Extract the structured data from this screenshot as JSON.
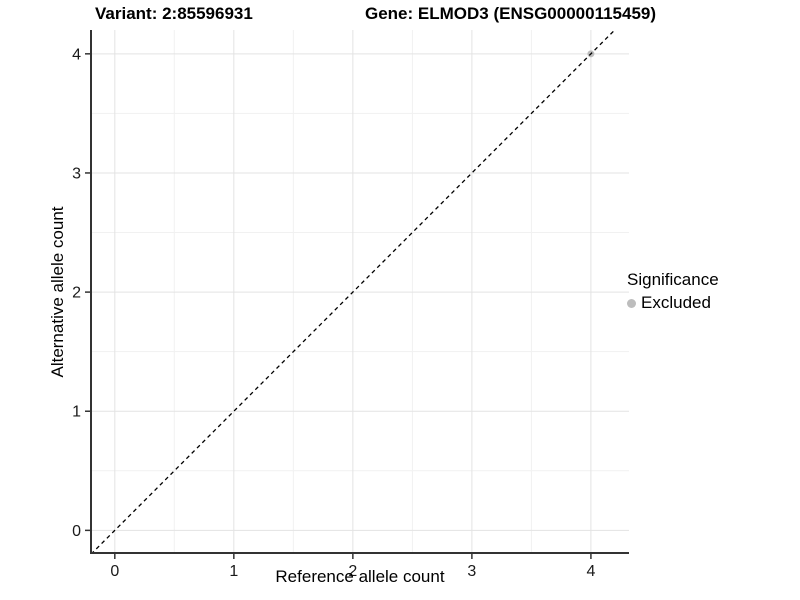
{
  "figure": {
    "title_left": "Variant: 2:85596931",
    "title_right": "Gene: ELMOD3 (ENSG00000115459)"
  },
  "chart_data": {
    "type": "scatter",
    "title": "Variant: 2:85596931   Gene: ELMOD3 (ENSG00000115459)",
    "xlabel": "Reference allele count",
    "ylabel": "Alternative allele count",
    "xlim": [
      -0.2,
      4.32
    ],
    "ylim": [
      -0.19,
      4.2
    ],
    "x_ticks": [
      0,
      1,
      2,
      3,
      4
    ],
    "y_ticks": [
      0,
      1,
      2,
      3,
      4
    ],
    "x_minor_ticks": [
      0.5,
      1.5,
      2.5,
      3.5
    ],
    "y_minor_ticks": [
      0.5,
      1.5,
      2.5,
      3.5
    ],
    "grid": {
      "major_color": "#e3e3e3",
      "minor_color": "#f1f1f1",
      "background": "#ffffff"
    },
    "axis": {
      "line_color": "#333333",
      "tick_color": "#333333",
      "tick_label_color": "#1a1a1a",
      "tick_label_size": 16
    },
    "reference_line": {
      "kind": "abline",
      "slope": 1,
      "intercept": 0,
      "style": "dashed",
      "color": "#000000"
    },
    "series": [
      {
        "name": "Excluded",
        "color": "#bdbdbd",
        "points": [
          {
            "x": 4,
            "y": 4
          }
        ]
      }
    ],
    "legend": {
      "title": "Significance",
      "position": "right",
      "items": [
        {
          "label": "Excluded",
          "color": "#bdbdbd"
        }
      ]
    }
  }
}
